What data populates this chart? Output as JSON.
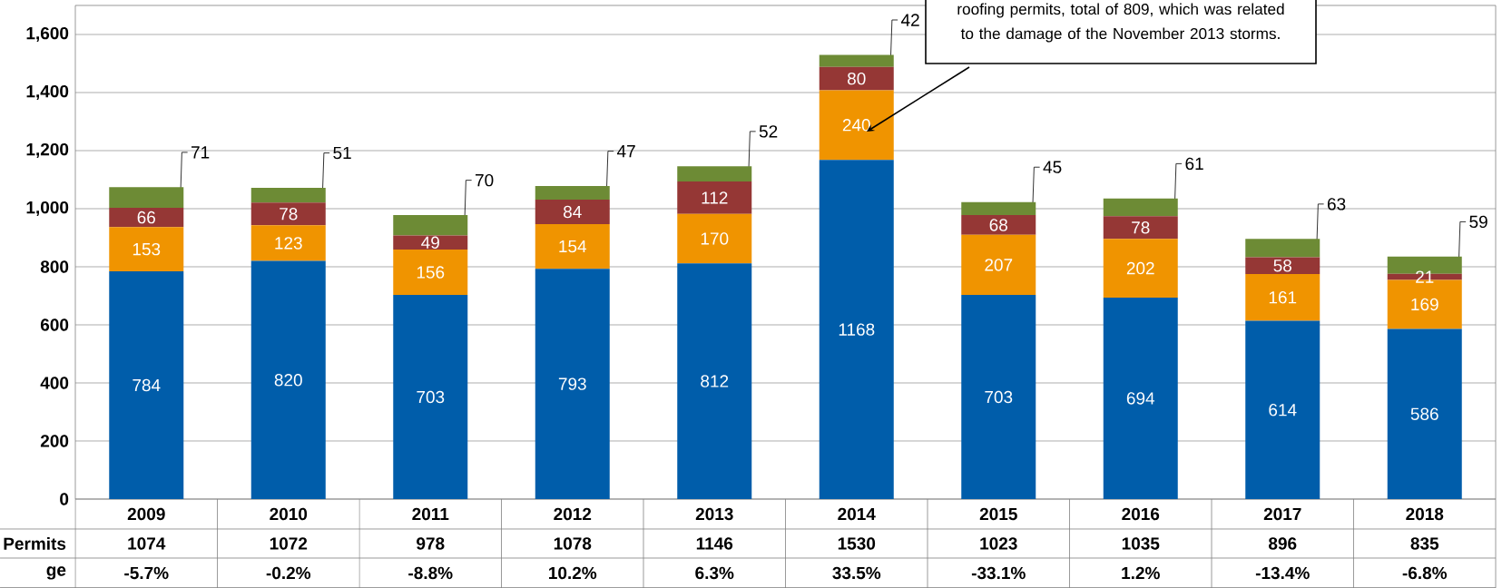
{
  "chart_data": {
    "type": "bar",
    "stacked": true,
    "categories": [
      "2009",
      "2010",
      "2011",
      "2012",
      "2013",
      "2014",
      "2015",
      "2016",
      "2017",
      "2018"
    ],
    "series": [
      {
        "color": "#005DAA",
        "values": [
          784,
          820,
          703,
          793,
          812,
          1168,
          703,
          694,
          614,
          586
        ]
      },
      {
        "color": "#F09400",
        "values": [
          153,
          123,
          156,
          154,
          170,
          240,
          207,
          202,
          161,
          169
        ]
      },
      {
        "color": "#953735",
        "values": [
          66,
          78,
          49,
          84,
          112,
          80,
          68,
          78,
          58,
          21
        ]
      },
      {
        "color": "#6D8B35",
        "values": [
          71,
          51,
          70,
          47,
          52,
          42,
          45,
          61,
          63,
          59
        ]
      }
    ],
    "ylim": [
      0,
      1700
    ],
    "yticks": [
      0,
      200,
      400,
      600,
      800,
      {
        "value": 1000,
        "label": "1,000"
      },
      {
        "value": 1200,
        "label": "1,200"
      },
      {
        "value": 1400,
        "label": "1,400"
      },
      {
        "value": 1600,
        "label": "1,600"
      }
    ],
    "grid": "y",
    "data_labels": true,
    "totals": [
      "1074",
      "1072",
      "978",
      "1078",
      "1146",
      "1530",
      "1023",
      "1035",
      "896",
      "835"
    ],
    "annotations": [
      "roofing permits, total of 809, which was related to the damage of the November 2013 storms.",
      "Permits",
      "ge",
      "-5.7%",
      "-0.2%",
      "-8.8%",
      "10.2%",
      "6.3%",
      "33.5%",
      "-33.1%",
      "1.2%",
      "-13.4%",
      "-6.8%"
    ]
  }
}
